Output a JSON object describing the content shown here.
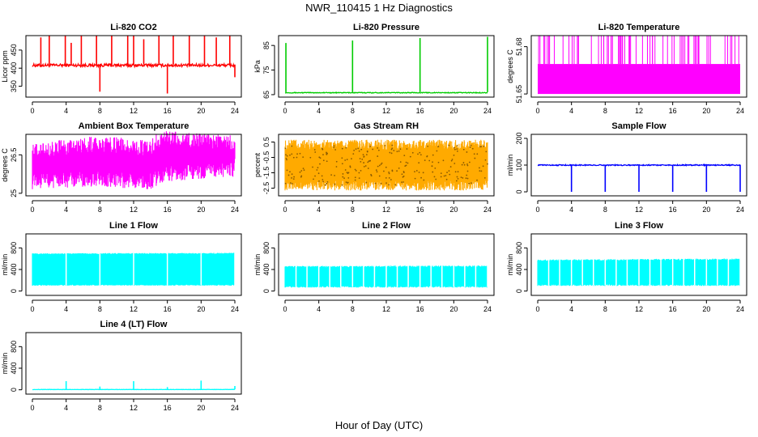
{
  "figure": {
    "title": "NWR_110415  1 Hz Diagnostics",
    "xlabel": "Hour of Day (UTC)"
  },
  "chart_data": [
    {
      "type": "line",
      "title": "Li-820 CO2",
      "ylabel": "Licor ppm",
      "color": "#ff0000",
      "xlim": [
        0,
        24
      ],
      "ylim": [
        320,
        490
      ],
      "xticks": [
        0,
        4,
        8,
        12,
        16,
        20,
        24
      ],
      "yticks": [
        350,
        400,
        450
      ],
      "base": 408,
      "noise": 4,
      "low": 410,
      "spikes": [
        [
          1.0,
          485
        ],
        [
          2.0,
          490
        ],
        [
          3.9,
          490
        ],
        [
          4.6,
          470
        ],
        [
          5.8,
          490
        ],
        [
          7.6,
          490
        ],
        [
          8.0,
          335
        ],
        [
          9.4,
          490
        ],
        [
          11.3,
          490
        ],
        [
          12.0,
          490
        ],
        [
          13.2,
          480
        ],
        [
          15.0,
          490
        ],
        [
          16.0,
          330
        ],
        [
          16.7,
          490
        ],
        [
          18.6,
          490
        ],
        [
          20.4,
          490
        ],
        [
          21.8,
          485
        ],
        [
          23.4,
          490
        ],
        [
          24.0,
          375
        ]
      ]
    },
    {
      "type": "line",
      "title": "Li-820 Pressure",
      "ylabel": "kPa",
      "color": "#00cc00",
      "xlim": [
        0,
        24
      ],
      "ylim": [
        64,
        89
      ],
      "xticks": [
        0,
        4,
        8,
        12,
        16,
        20,
        24
      ],
      "yticks": [
        65,
        75,
        85
      ],
      "base": 65.8,
      "noise": 0.15,
      "low": 66,
      "spikes": [
        [
          0.1,
          86
        ],
        [
          8.0,
          87
        ],
        [
          16.0,
          88
        ],
        [
          24.0,
          88.5
        ]
      ]
    },
    {
      "type": "band",
      "title": "Li-820 Temperature",
      "ylabel": "degrees C",
      "color": "#ff00ff",
      "xlim": [
        0,
        24
      ],
      "ylim": [
        51.648,
        51.687
      ],
      "xticks": [
        0,
        4,
        8,
        12,
        16,
        20,
        24
      ],
      "yticks": [
        51.65,
        51.68
      ],
      "band": [
        51.65,
        51.669
      ],
      "spikeTop": 51.687,
      "spikeCount": 70
    },
    {
      "type": "band",
      "title": "Ambient Box Temperature",
      "ylabel": "degrees C",
      "color": "#ff00ff",
      "xlim": [
        0,
        24
      ],
      "ylim": [
        24.9,
        27.3
      ],
      "xticks": [
        0,
        4,
        8,
        12,
        16,
        20,
        24
      ],
      "yticks": [
        25.0,
        26.5
      ],
      "bandLow": [
        [
          0,
          25.5
        ],
        [
          7,
          25.6
        ],
        [
          14,
          25.5
        ],
        [
          16,
          25.8
        ],
        [
          24,
          26.0
        ]
      ],
      "bandHigh": [
        [
          0,
          26.6
        ],
        [
          8,
          26.9
        ],
        [
          14,
          26.7
        ],
        [
          15,
          27.1
        ],
        [
          24,
          26.9
        ]
      ],
      "noise": 0.35
    },
    {
      "type": "band",
      "title": "Gas Stream RH",
      "ylabel": "percent",
      "color": "#ffaa00",
      "xlim": [
        0,
        24
      ],
      "ylim": [
        -3.0,
        1.0
      ],
      "xticks": [
        0,
        4,
        8,
        12,
        16,
        20,
        24
      ],
      "yticks": [
        -2.5,
        -1.5,
        -0.5,
        0.5
      ],
      "bandLow": [
        [
          0,
          -2.3
        ],
        [
          24,
          -2.3
        ]
      ],
      "bandHigh": [
        [
          0,
          0.3
        ],
        [
          24,
          0.3
        ]
      ],
      "noise": 0.35,
      "dotted": true
    },
    {
      "type": "line",
      "title": "Sample Flow",
      "ylabel": "ml/min",
      "color": "#0000ff",
      "xlim": [
        0,
        24
      ],
      "ylim": [
        -15,
        215
      ],
      "xticks": [
        0,
        4,
        8,
        12,
        16,
        20,
        24
      ],
      "yticks": [
        0,
        100,
        200
      ],
      "base": 100,
      "noise": 2,
      "low": 101,
      "spikes": [
        [
          4.0,
          0
        ],
        [
          8.0,
          0
        ],
        [
          12.0,
          0
        ],
        [
          16.0,
          0
        ],
        [
          20.0,
          0
        ],
        [
          24.0,
          0
        ]
      ]
    },
    {
      "type": "band",
      "title": "Line 1 Flow",
      "ylabel": "ml/min",
      "color": "#00ffff",
      "xlim": [
        0,
        24
      ],
      "ylim": [
        -80,
        1060
      ],
      "xticks": [
        0,
        4,
        8,
        12,
        16,
        20,
        24
      ],
      "yticks": [
        0,
        400,
        800
      ],
      "bandLow": [
        [
          0,
          110
        ],
        [
          24,
          110
        ]
      ],
      "bandHigh": [
        [
          0,
          690
        ],
        [
          24,
          700
        ]
      ],
      "noise": 10,
      "gaps": [
        4,
        8,
        12,
        16,
        20,
        24
      ]
    },
    {
      "type": "band",
      "title": "Line 2 Flow",
      "ylabel": "ml/min",
      "color": "#00ffff",
      "xlim": [
        0,
        24
      ],
      "ylim": [
        -80,
        1060
      ],
      "xticks": [
        0,
        4,
        8,
        12,
        16,
        20,
        24
      ],
      "yticks": [
        0,
        400,
        800
      ],
      "bandLow": [
        [
          0,
          80
        ],
        [
          24,
          80
        ]
      ],
      "bandHigh": [
        [
          0,
          450
        ],
        [
          24,
          460
        ]
      ],
      "noise": 15,
      "gaps": [
        1.3,
        2.6,
        4,
        5.3,
        6.6,
        8,
        9.3,
        10.6,
        12,
        13.3,
        14.6,
        16,
        17.3,
        18.6,
        20,
        21.3,
        22.6,
        24
      ]
    },
    {
      "type": "band",
      "title": "Line 3 Flow",
      "ylabel": "ml/min",
      "color": "#00ffff",
      "xlim": [
        0,
        24
      ],
      "ylim": [
        -80,
        1060
      ],
      "xticks": [
        0,
        4,
        8,
        12,
        16,
        20,
        24
      ],
      "yticks": [
        0,
        400,
        800
      ],
      "bandLow": [
        [
          0,
          110
        ],
        [
          24,
          110
        ]
      ],
      "bandHigh": [
        [
          0,
          570
        ],
        [
          24,
          590
        ]
      ],
      "noise": 15,
      "gaps": [
        1.3,
        2.6,
        4,
        5.3,
        6.6,
        8,
        9.3,
        10.6,
        12,
        13.3,
        14.6,
        16,
        17.3,
        18.6,
        20,
        21.3,
        22.6,
        24
      ]
    },
    {
      "type": "line",
      "title": "Line 4 (LT) Flow",
      "ylabel": "ml/min",
      "color": "#00ffff",
      "xlim": [
        0,
        24
      ],
      "ylim": [
        -80,
        1060
      ],
      "xticks": [
        0,
        4,
        8,
        12,
        16,
        20,
        24
      ],
      "yticks": [
        0,
        400,
        800
      ],
      "base": 5,
      "noise": 3,
      "low": 8,
      "spikes": [
        [
          4.0,
          160
        ],
        [
          8.0,
          60
        ],
        [
          12.0,
          160
        ],
        [
          16.0,
          50
        ],
        [
          20.0,
          170
        ],
        [
          24.0,
          70
        ]
      ]
    }
  ]
}
